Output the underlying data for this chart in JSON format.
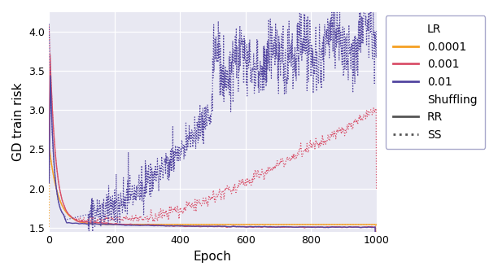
{
  "title": "",
  "xlabel": "Epoch",
  "ylabel": "GD train risk",
  "xlim": [
    0,
    1000
  ],
  "ylim": [
    1.45,
    4.25
  ],
  "yticks": [
    1.5,
    2.0,
    2.5,
    3.0,
    3.5,
    4.0
  ],
  "xticks": [
    0,
    200,
    400,
    600,
    800,
    1000
  ],
  "n_epochs": 1001,
  "colors": {
    "lr_0001": "#f5a023",
    "lr_001": "#d9516a",
    "lr_01": "#5346a0"
  },
  "background_color": "#e8e8f2",
  "seed": 42
}
